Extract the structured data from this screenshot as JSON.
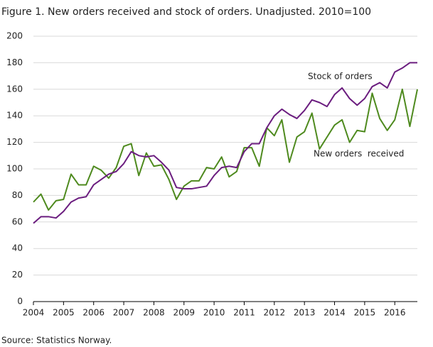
{
  "chart_data": {
    "type": "line",
    "title": "Figure 1. New orders received and stock of orders. Unadjusted. 2010=100",
    "source": "Source: Statistics Norway.",
    "x": [
      2004,
      2004.25,
      2004.5,
      2004.75,
      2005,
      2005.25,
      2005.5,
      2005.75,
      2006,
      2006.25,
      2006.5,
      2006.75,
      2007,
      2007.25,
      2007.5,
      2007.75,
      2008,
      2008.25,
      2008.5,
      2008.75,
      2009,
      2009.25,
      2009.5,
      2009.75,
      2010,
      2010.25,
      2010.5,
      2010.75,
      2011,
      2011.25,
      2011.5,
      2011.75,
      2012,
      2012.25,
      2012.5,
      2012.75,
      2013,
      2013.25,
      2013.5,
      2013.75,
      2014,
      2014.25,
      2014.5,
      2014.75,
      2015,
      2015.25,
      2015.5,
      2015.75,
      2016,
      2016.25,
      2016.5,
      2016.75
    ],
    "series": [
      {
        "name": "New orders  received",
        "color": "#4e8a1e",
        "values": [
          75,
          81,
          69,
          76,
          77,
          96,
          88,
          88,
          102,
          99,
          93,
          101,
          117,
          119,
          95,
          112,
          102,
          103,
          92,
          77,
          87,
          91,
          91,
          101,
          100,
          109,
          94,
          98,
          116,
          116,
          102,
          131,
          125,
          137,
          105,
          124,
          128,
          142,
          115,
          124,
          133,
          137,
          120,
          129,
          128,
          157,
          138,
          129,
          137,
          160,
          132,
          160
        ]
      },
      {
        "name": "Stock of orders",
        "color": "#6b1d7f",
        "values": [
          59,
          64,
          64,
          63,
          68,
          75,
          78,
          79,
          88,
          92,
          96,
          98,
          104,
          113,
          110,
          109,
          110,
          105,
          99,
          86,
          85,
          85,
          86,
          87,
          95,
          101,
          102,
          101,
          113,
          119,
          119,
          131,
          140,
          145,
          141,
          138,
          144,
          152,
          150,
          147,
          156,
          161,
          153,
          148,
          153,
          162,
          165,
          161,
          173,
          176,
          180,
          180
        ]
      }
    ],
    "xlim": [
      2004,
      2016.75
    ],
    "xticks": [
      2004,
      2005,
      2006,
      2007,
      2008,
      2009,
      2010,
      2011,
      2012,
      2013,
      2014,
      2015,
      2016
    ],
    "ylim": [
      0,
      200
    ],
    "yticks": [
      0,
      20,
      40,
      60,
      80,
      100,
      120,
      140,
      160,
      180,
      200
    ],
    "grid": true
  }
}
